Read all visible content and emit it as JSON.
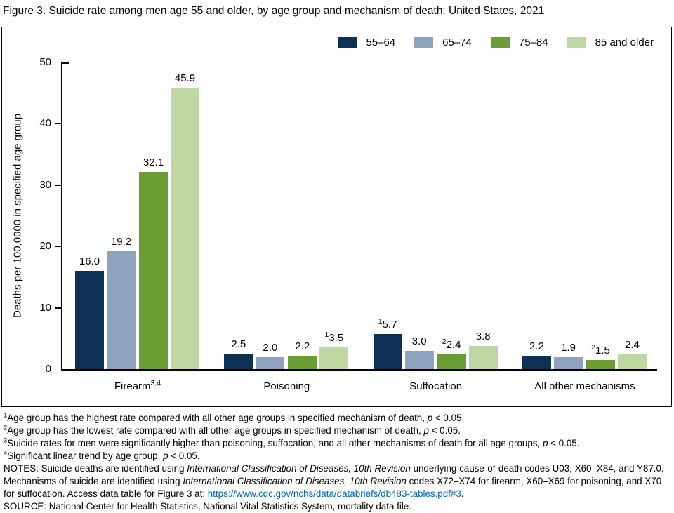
{
  "colors": {
    "navy": "#0D3055",
    "gray_blue": "#8EA3BE",
    "green": "#6A9E35",
    "light_green": "#BED7A2",
    "axis": "#000000",
    "link_blue": "#0563C1"
  },
  "chart_data": {
    "type": "bar",
    "title": "Figure 3. Suicide rate among men age 55 and older, by age group and mechanism of death: United States, 2021",
    "ylabel": "Deaths per 100,0000 in specified age group",
    "xlabel": "",
    "ylim": [
      0,
      50
    ],
    "yticks": [
      0,
      10,
      20,
      30,
      40,
      50
    ],
    "grid": false,
    "legend_position": "top-right-inside",
    "categories": [
      "Firearm",
      "Poisoning",
      "Suffocation",
      "All other mechanisms"
    ],
    "category_sups": [
      "3,4",
      "",
      "",
      ""
    ],
    "series": [
      {
        "name": "55–64",
        "color": "#0D3055",
        "values": [
          16.0,
          2.5,
          5.7,
          2.2
        ],
        "labels": [
          "16.0",
          "2.5",
          "5.7",
          "2.2"
        ],
        "label_sups": [
          "",
          "",
          "1",
          ""
        ]
      },
      {
        "name": "65–74",
        "color": "#8EA3BE",
        "values": [
          19.2,
          2.0,
          3.0,
          1.9
        ],
        "labels": [
          "19.2",
          "2.0",
          "3.0",
          "1.9"
        ],
        "label_sups": [
          "",
          "",
          "",
          ""
        ]
      },
      {
        "name": "75–84",
        "color": "#6A9E35",
        "values": [
          32.1,
          2.2,
          2.4,
          1.5
        ],
        "labels": [
          "32.1",
          "2.2",
          "2.4",
          "1.5"
        ],
        "label_sups": [
          "",
          "",
          "2",
          "2"
        ]
      },
      {
        "name": "85 and older",
        "color": "#BED7A2",
        "values": [
          45.9,
          3.5,
          3.8,
          2.4
        ],
        "labels": [
          "45.9",
          "3.5",
          "3.8",
          "2.4"
        ],
        "label_sups": [
          "",
          "1",
          "",
          ""
        ]
      }
    ]
  },
  "footnotes": [
    {
      "sup": "1",
      "text": "Age group has the highest rate compared with all other age groups in specified mechanism of death, *p* < 0.05."
    },
    {
      "sup": "2",
      "text": "Age group has the lowest rate compared with all other age groups in specified mechanism of death, *p* < 0.05."
    },
    {
      "sup": "3",
      "text": "Suicide rates for men were significantly higher than poisoning, suffocation, and all other mechanisms of death for all age groups, *p* < 0.05."
    },
    {
      "sup": "4",
      "text": "Significant linear trend by age group, *p* < 0.05."
    },
    {
      "sup": "",
      "text": "NOTES: Suicide deaths are identified using *International Classification of Diseases, 10th Revision* underlying cause-of-death codes U03, X60–X84, and Y87.0. Mechanisms of suicide are identified using *International Classification of Diseases, 10th Revision* codes X72–X74 for firearm, X60–X69 for poisoning, and X70 for suffocation. Access data table for Figure 3 at: [https://www.cdc.gov/nchs/data/databriefs/db483-tables.pdf#3]."
    },
    {
      "sup": "",
      "text": "SOURCE: National Center for Health Statistics, National Vital Statistics System, mortality data file."
    }
  ]
}
